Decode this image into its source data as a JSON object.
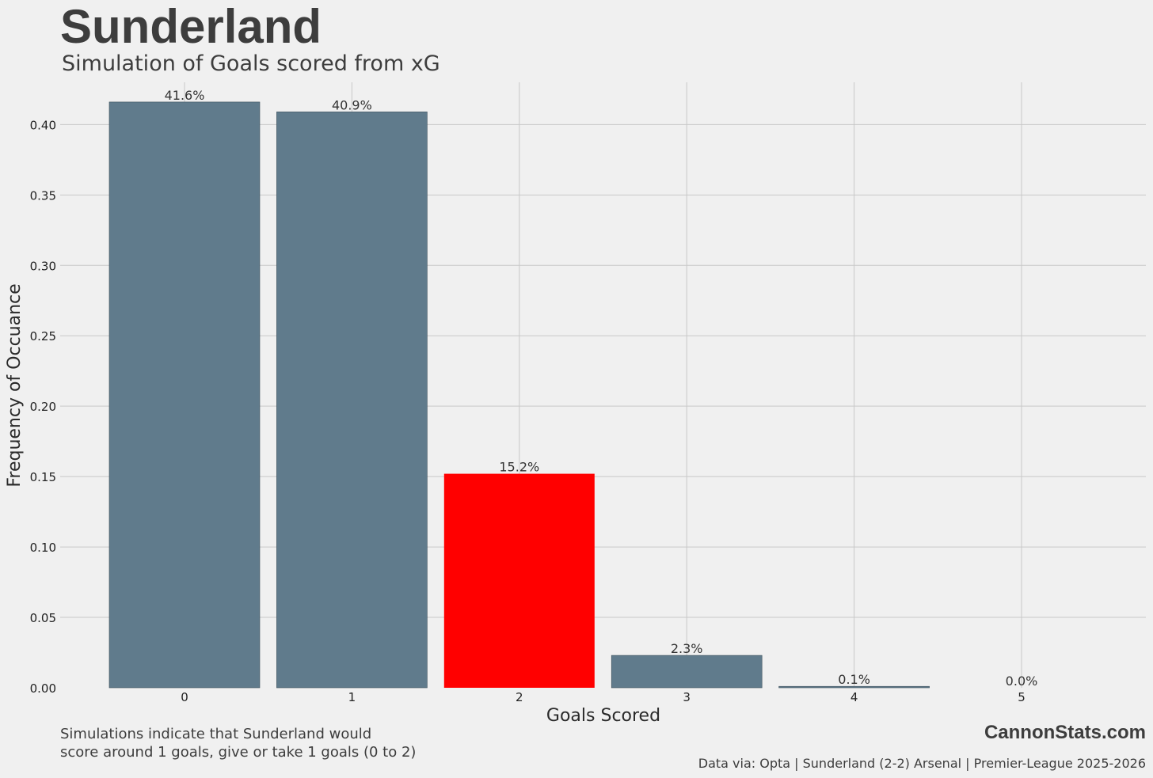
{
  "header": {
    "title": "Sunderland",
    "subtitle": "Simulation of Goals scored from xG"
  },
  "chart_data": {
    "type": "bar",
    "categories": [
      "0",
      "1",
      "2",
      "3",
      "4",
      "5"
    ],
    "values": [
      0.416,
      0.409,
      0.152,
      0.023,
      0.001,
      0.0
    ],
    "data_labels": [
      "41.6%",
      "40.9%",
      "15.2%",
      "2.3%",
      "0.1%",
      "0.0%"
    ],
    "highlight_index": 2,
    "colors": {
      "default": "#607b8c",
      "highlight": "#ff0000",
      "grid": "#c8c8c8",
      "background": "#f0f0f0"
    },
    "xlabel": "Goals Scored",
    "ylabel": "Frequency of Occuance",
    "ylim": [
      0,
      0.43
    ],
    "yticks": [
      0.0,
      0.05,
      0.1,
      0.15,
      0.2,
      0.25,
      0.3,
      0.35,
      0.4
    ],
    "ytick_labels": [
      "0.00",
      "0.05",
      "0.10",
      "0.15",
      "0.20",
      "0.25",
      "0.30",
      "0.35",
      "0.40"
    ],
    "grid": true
  },
  "footer": {
    "note_line1": "Simulations indicate that Sunderland would",
    "note_line2": "score around 1 goals, give or take 1 goals (0 to 2)",
    "brand": "CannonStats.com",
    "source": "Data via: Opta | Sunderland (2-2) Arsenal | Premier-League 2025-2026"
  }
}
